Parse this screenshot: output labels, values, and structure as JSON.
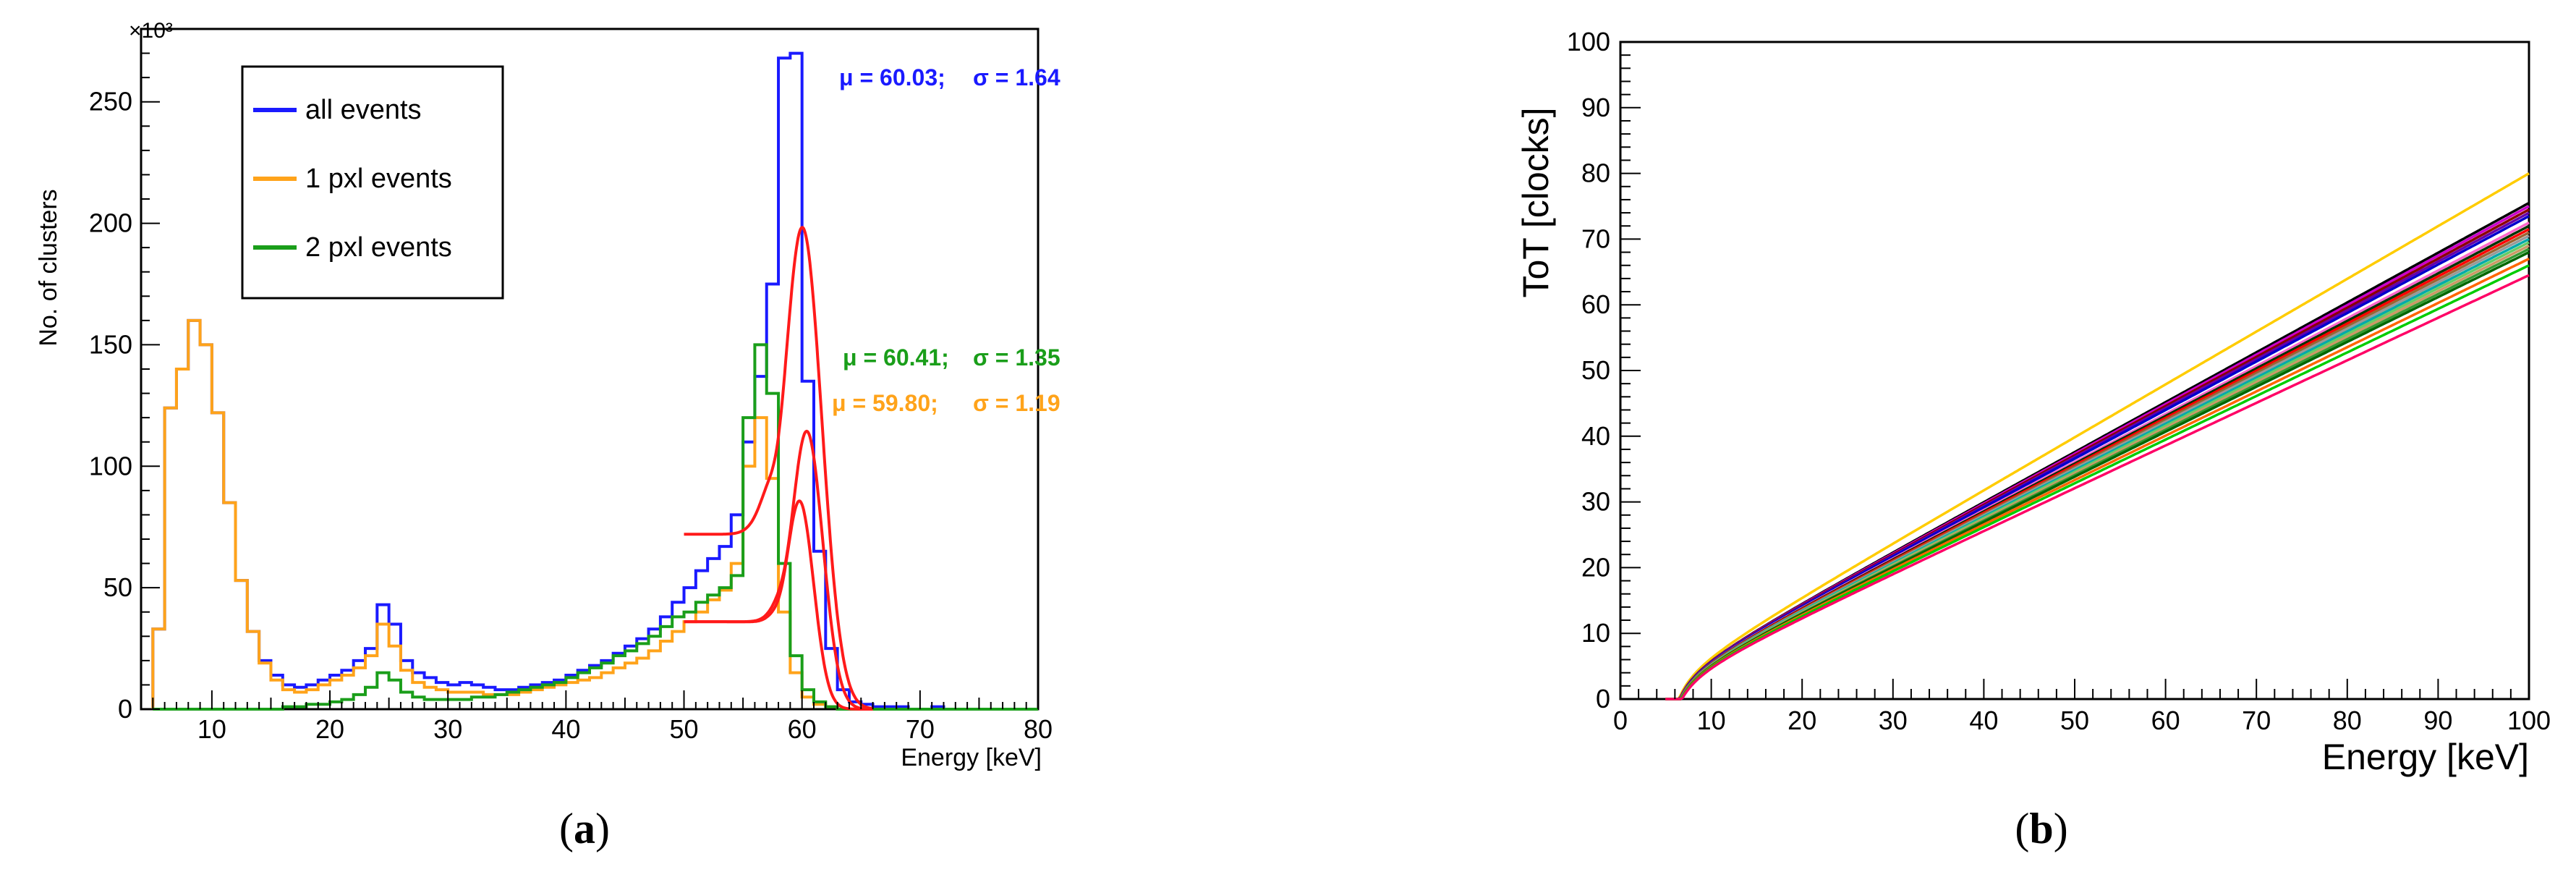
{
  "panels": [
    {
      "caption": "(a)",
      "caption_letter": "a",
      "chart_data": {
        "type": "histogram",
        "title": "",
        "xlabel": "Energy [keV]",
        "ylabel": "No. of clusters",
        "y_multiplier_label": "×10³",
        "xlim": [
          4,
          80
        ],
        "ylim": [
          0,
          280
        ],
        "x_ticks": [
          10,
          20,
          30,
          40,
          50,
          60,
          70,
          80
        ],
        "y_ticks": [
          0,
          50,
          100,
          150,
          200,
          250
        ],
        "bin_width": 1,
        "bin_start": 5,
        "grid": false,
        "legend_position": "top-left",
        "series": [
          {
            "name": "all events",
            "color": "#1a1aff",
            "values": [
              33,
              124,
              140,
              160,
              150,
              122,
              85,
              53,
              32,
              20,
              14,
              10,
              9,
              10,
              12,
              14,
              16,
              20,
              25,
              43,
              35,
              20,
              15,
              13,
              11,
              10,
              11,
              10,
              9,
              8,
              8,
              9,
              10,
              11,
              12,
              14,
              16,
              18,
              20,
              23,
              26,
              29,
              33,
              38,
              44,
              50,
              57,
              62,
              67,
              80,
              110,
              137,
              175,
              268,
              270,
              135,
              65,
              25,
              8,
              3,
              2,
              1,
              1,
              1,
              0,
              0,
              1,
              0,
              0,
              0,
              0,
              0,
              0,
              0,
              0
            ]
          },
          {
            "name": "1 pxl events",
            "color": "#ffa31a",
            "values": [
              33,
              124,
              140,
              160,
              150,
              122,
              85,
              53,
              32,
              19,
              12,
              8,
              7,
              8,
              10,
              12,
              14,
              17,
              22,
              35,
              26,
              16,
              11,
              9,
              8,
              7,
              7,
              7,
              6,
              6,
              6,
              7,
              8,
              9,
              10,
              11,
              12,
              13,
              15,
              17,
              19,
              21,
              24,
              28,
              32,
              36,
              40,
              45,
              49,
              60,
              100,
              120,
              95,
              40,
              15,
              5,
              2,
              1,
              0,
              0,
              0,
              0,
              0,
              0,
              0,
              0,
              0,
              0,
              0,
              0,
              0,
              0,
              0,
              0,
              0
            ]
          },
          {
            "name": "2 pxl events",
            "color": "#1a9e1a",
            "values": [
              0,
              0,
              0,
              0,
              0,
              0,
              0,
              0,
              0,
              0,
              0,
              1,
              1,
              2,
              2,
              3,
              4,
              6,
              9,
              15,
              12,
              7,
              5,
              4,
              4,
              4,
              4,
              5,
              5,
              6,
              7,
              8,
              9,
              10,
              11,
              13,
              15,
              17,
              19,
              22,
              24,
              27,
              30,
              34,
              38,
              40,
              44,
              47,
              50,
              55,
              120,
              150,
              130,
              60,
              22,
              8,
              3,
              1,
              0,
              0,
              0,
              0,
              0,
              0,
              0,
              0,
              0,
              0,
              0,
              0,
              0,
              0,
              0,
              0,
              0
            ]
          }
        ],
        "fits": [
          {
            "color": "#ff1a1a",
            "mean": 60.03,
            "sigma": 1.64,
            "amplitude": 198,
            "baseline": 72,
            "x_range": [
              50,
              66
            ]
          },
          {
            "color": "#ff1a1a",
            "mean": 60.41,
            "sigma": 1.35,
            "amplitude": 114,
            "baseline": 36,
            "x_range": [
              50,
              66
            ]
          },
          {
            "color": "#ff1a1a",
            "mean": 59.8,
            "sigma": 1.19,
            "amplitude": 85,
            "baseline": 36,
            "x_range": [
              50,
              66
            ]
          }
        ],
        "annotations": [
          {
            "color": "#1a1aff",
            "mu_label": "μ = 60.03;",
            "sigma_label": "σ =  1.64"
          },
          {
            "color": "#1a9e1a",
            "mu_label": "μ = 60.41;",
            "sigma_label": "σ =  1.35"
          },
          {
            "color": "#ffa31a",
            "mu_label": "μ = 59.80;",
            "sigma_label": "σ =  1.19"
          }
        ]
      }
    },
    {
      "caption": "(b)",
      "caption_letter": "b",
      "chart_data": {
        "type": "line",
        "title": "",
        "xlabel": "Energy [keV]",
        "ylabel": "ToT [clocks]",
        "xlim": [
          0,
          100
        ],
        "ylim": [
          0,
          100
        ],
        "x_ticks": [
          0,
          10,
          20,
          30,
          40,
          50,
          60,
          70,
          80,
          90,
          100
        ],
        "y_ticks": [
          0,
          10,
          20,
          30,
          40,
          50,
          60,
          70,
          80,
          90,
          100
        ],
        "grid": false,
        "curve_model": "ToT = a*E + b - c/(E - t)",
        "curve_params": {
          "b": 0,
          "c": 10,
          "t": 4.5
        },
        "series": [
          {
            "color": "#ffcc00",
            "tot_at_100": 80
          },
          {
            "color": "#000000",
            "tot_at_100": 75.5
          },
          {
            "color": "#cc00cc",
            "tot_at_100": 75
          },
          {
            "color": "#8b0000",
            "tot_at_100": 74.5
          },
          {
            "color": "#6600aa",
            "tot_at_100": 74
          },
          {
            "color": "#0000cc",
            "tot_at_100": 73.5
          },
          {
            "color": "#ff66cc",
            "tot_at_100": 72.5
          },
          {
            "color": "#003300",
            "tot_at_100": 72
          },
          {
            "color": "#ff0000",
            "tot_at_100": 71.5
          },
          {
            "color": "#996633",
            "tot_at_100": 71
          },
          {
            "color": "#999999",
            "tot_at_100": 70.5
          },
          {
            "color": "#00aaaa",
            "tot_at_100": 70
          },
          {
            "color": "#66cc66",
            "tot_at_100": 69.5
          },
          {
            "color": "#cc9966",
            "tot_at_100": 69
          },
          {
            "color": "#339933",
            "tot_at_100": 68.5
          },
          {
            "color": "#006600",
            "tot_at_100": 68
          },
          {
            "color": "#ff6600",
            "tot_at_100": 67
          },
          {
            "color": "#00cc00",
            "tot_at_100": 66
          },
          {
            "color": "#ff0066",
            "tot_at_100": 64.5
          }
        ]
      }
    }
  ]
}
